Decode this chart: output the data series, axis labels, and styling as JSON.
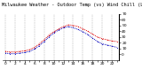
{
  "title": "Milwaukee Weather - Outdoor Temp (vs) Wind Chill (Last 24 Hours)",
  "temp": [
    5,
    4,
    4,
    5,
    6,
    8,
    12,
    18,
    25,
    33,
    39,
    44,
    48,
    51,
    50,
    48,
    44,
    40,
    35,
    30,
    27,
    25,
    23,
    22
  ],
  "wind_chill": [
    2,
    1,
    1,
    2,
    3,
    5,
    9,
    15,
    22,
    30,
    37,
    42,
    46,
    48,
    46,
    43,
    39,
    34,
    28,
    22,
    18,
    16,
    14,
    12
  ],
  "temp_color": "#dd0000",
  "wind_chill_color": "#0000bb",
  "bg_color": "#ffffff",
  "plot_bg": "#ffffff",
  "grid_color": "#999999",
  "ylim_min": -10,
  "ylim_max": 70,
  "ytick_values": [
    0,
    10,
    20,
    30,
    40,
    50,
    60,
    70
  ],
  "ytick_labels": [
    "0",
    "10",
    "20",
    "30",
    "40",
    "50",
    "60",
    "70"
  ],
  "n_points": 24,
  "title_fontsize": 3.8,
  "tick_fontsize": 3.2,
  "line_width": 0.7,
  "marker_size": 1.5
}
